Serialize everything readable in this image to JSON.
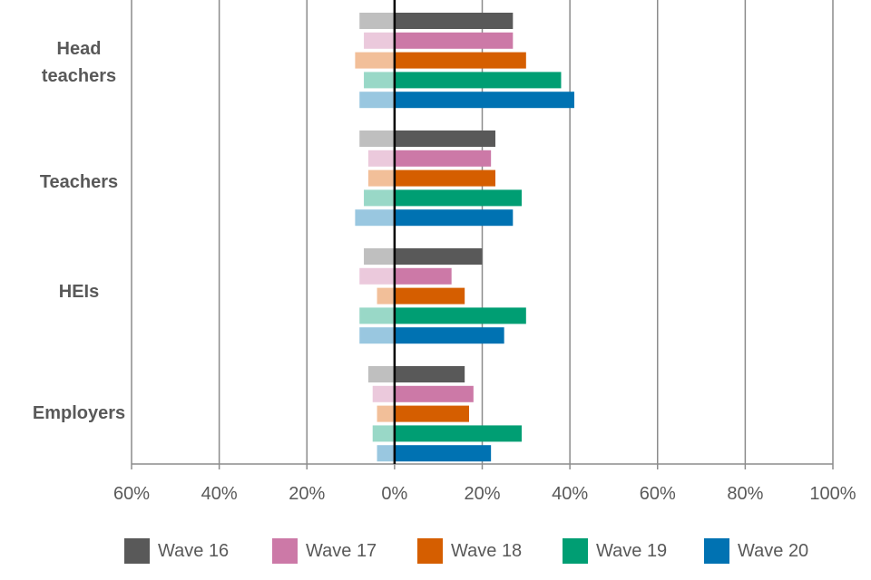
{
  "chart_data": {
    "type": "bar",
    "orientation": "horizontal",
    "title": "",
    "xlabel": "",
    "ylabel": "",
    "xlim": [
      -60,
      100
    ],
    "x_ticks": [
      -60,
      -40,
      -20,
      0,
      20,
      40,
      60,
      80,
      100
    ],
    "x_tick_labels": [
      "60%",
      "40%",
      "20%",
      "0%",
      "20%",
      "40%",
      "60%",
      "80%",
      "100%"
    ],
    "categories": [
      "Head teachers",
      "Teachers",
      "HEIs",
      "Employers"
    ],
    "category_label_lines": [
      [
        "Head",
        "teachers"
      ],
      [
        "Teachers"
      ],
      [
        "HEIs"
      ],
      [
        "Employers"
      ]
    ],
    "grid": true,
    "legend_position": "bottom",
    "series": [
      {
        "name": "Wave 16",
        "color": "#595959",
        "light_color": "#bfbfbf",
        "positive": [
          27,
          23,
          20,
          16
        ],
        "negative": [
          -8,
          -8,
          -7,
          -6
        ]
      },
      {
        "name": "Wave 17",
        "color": "#cc79a7",
        "light_color": "#ebc9dc",
        "positive": [
          27,
          22,
          13,
          18
        ],
        "negative": [
          -7,
          -6,
          -8,
          -5
        ]
      },
      {
        "name": "Wave 18",
        "color": "#d55e00",
        "light_color": "#f2bf99",
        "positive": [
          30,
          23,
          16,
          17
        ],
        "negative": [
          -9,
          -6,
          -4,
          -4
        ]
      },
      {
        "name": "Wave 19",
        "color": "#009e73",
        "light_color": "#99d8c7",
        "positive": [
          38,
          29,
          30,
          29
        ],
        "negative": [
          -7,
          -7,
          -8,
          -5
        ]
      },
      {
        "name": "Wave 20",
        "color": "#0072b2",
        "light_color": "#99c7e0",
        "positive": [
          41,
          27,
          25,
          22
        ],
        "negative": [
          -8,
          -9,
          -8,
          -4
        ]
      }
    ]
  }
}
